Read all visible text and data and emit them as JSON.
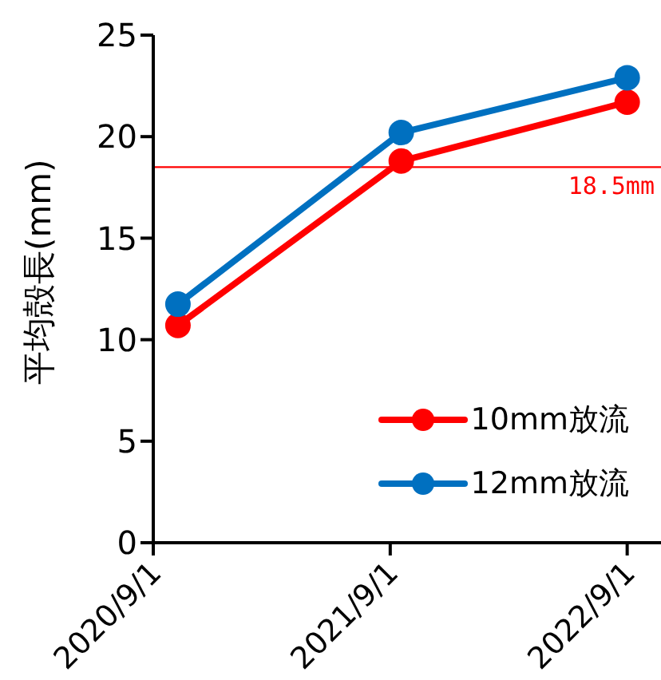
{
  "chart_data": {
    "type": "line",
    "ylabel": "平均殻長(mm)",
    "x": [
      "2020-10-09",
      "2021-09-18",
      "2022-09-01"
    ],
    "series": [
      {
        "name": "10mm放流",
        "color": "#ff0000",
        "values": [
          10.7,
          18.8,
          21.7
        ]
      },
      {
        "name": "12mm放流",
        "color": "#0070c0",
        "values": [
          11.75,
          20.2,
          22.9
        ]
      }
    ],
    "xlim": [
      "2020-09-01",
      "2022-10-28"
    ],
    "xticks": [
      {
        "value": "2020-09-01",
        "label": "2020/9/1"
      },
      {
        "value": "2021-09-01",
        "label": "2021/9/1"
      },
      {
        "value": "2022-09-01",
        "label": "2022/9/1"
      }
    ],
    "ylim": [
      0,
      25
    ],
    "yticks": [
      0,
      5,
      10,
      15,
      20,
      25
    ],
    "ref_lines": [
      {
        "axis": "y",
        "value": 18.5,
        "label": "18.5mm",
        "color": "#ff0000"
      }
    ],
    "grid": false,
    "legend": "bottom right",
    "marker": "circle",
    "line_style": "solid"
  }
}
